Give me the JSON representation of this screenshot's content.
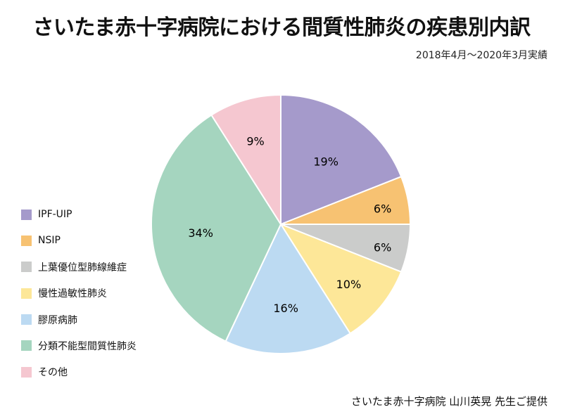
{
  "header": {
    "title": "さいたま赤十字病院における間質性肺炎の疾患別内訳",
    "subtitle": "2018年4月～2020年3月実績"
  },
  "footer": {
    "credit": "さいたま赤十字病院 山川英晃 先生ご提供"
  },
  "chart_data": {
    "type": "pie",
    "title": "さいたま赤十字病院における間質性肺炎の疾患別内訳",
    "subtitle": "2018年4月～2020年3月実績",
    "categories": [
      "IPF-UIP",
      "NSIP",
      "上葉優位型肺線維症",
      "慢性過敏性肺炎",
      "膠原病肺",
      "分類不能型間質性肺炎",
      "その他"
    ],
    "values": [
      19,
      6,
      6,
      10,
      16,
      34,
      9
    ],
    "unit": "%",
    "colors": [
      "#a59acb",
      "#f7c272",
      "#cbcccb",
      "#fde798",
      "#bcdaf2",
      "#a5d5bf",
      "#f5c7d0"
    ],
    "start_angle": "12 o'clock, clockwise",
    "legend_position": "left",
    "note": "さいたま赤十字病院 山川英晃 先生ご提供"
  },
  "legend": {
    "items": [
      {
        "label": "IPF-UIP",
        "color": "#a59acb"
      },
      {
        "label": "NSIP",
        "color": "#f7c272"
      },
      {
        "label": "上葉優位型肺線維症",
        "color": "#cbcccb"
      },
      {
        "label": "慢性過敏性肺炎",
        "color": "#fde798"
      },
      {
        "label": "膠原病肺",
        "color": "#bcdaf2"
      },
      {
        "label": "分類不能型間質性肺炎",
        "color": "#a5d5bf"
      },
      {
        "label": "その他",
        "color": "#f5c7d0"
      }
    ]
  },
  "slice_labels": [
    {
      "num": "19",
      "pct": "%"
    },
    {
      "num": "6",
      "pct": "%"
    },
    {
      "num": "6",
      "pct": "%"
    },
    {
      "num": "10",
      "pct": "%"
    },
    {
      "num": "16",
      "pct": "%"
    },
    {
      "num": "34",
      "pct": "%"
    },
    {
      "num": "9",
      "pct": "%"
    }
  ]
}
